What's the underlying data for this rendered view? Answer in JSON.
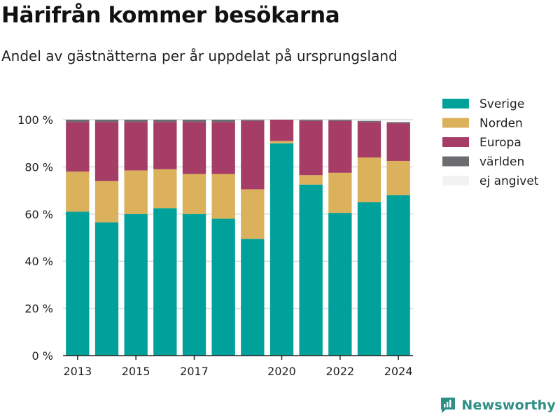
{
  "title": "Härifrån kommer besökarna",
  "subtitle": "Andel av gästnätterna per år uppdelat på ursprungsland",
  "brand": "Newsworthy",
  "chart_data": {
    "type": "bar",
    "stacked": true,
    "categories": [
      2013,
      2014,
      2015,
      2016,
      2017,
      2018,
      2019,
      2020,
      2021,
      2022,
      2023,
      2024
    ],
    "x_ticks": [
      "2013",
      "2015",
      "2017",
      "2020",
      "2022",
      "2024"
    ],
    "x_tick_values": [
      2013,
      2015,
      2017,
      2020,
      2022,
      2024
    ],
    "y_ticks": [
      "0 %",
      "20 %",
      "40 %",
      "60 %",
      "80 %",
      "100 %"
    ],
    "ylim": [
      0,
      100
    ],
    "grid": true,
    "legend_position": "right",
    "series": [
      {
        "name": "Sverige",
        "color": "#00a19a",
        "values": [
          61,
          56.5,
          60,
          62.5,
          60,
          58,
          49.5,
          90,
          72.5,
          60.5,
          65,
          68
        ]
      },
      {
        "name": "Norden",
        "color": "#dbb15c",
        "values": [
          17,
          17.5,
          18.5,
          16.5,
          17,
          19,
          21,
          1,
          4,
          17,
          19,
          14.5
        ]
      },
      {
        "name": "Europa",
        "color": "#a63d66",
        "values": [
          21,
          25,
          20.5,
          20,
          22,
          22,
          29,
          9,
          23,
          22,
          15,
          16
        ]
      },
      {
        "name": "världen",
        "color": "#6c6c70",
        "values": [
          1,
          1,
          1,
          1,
          1,
          1,
          0.5,
          0,
          0.5,
          0.5,
          0.5,
          0.5
        ]
      },
      {
        "name": "ej angivet",
        "color": "#f2f2f2",
        "values": [
          0,
          0,
          0,
          0,
          0,
          0,
          0,
          0,
          0,
          0,
          0,
          0
        ]
      }
    ]
  }
}
